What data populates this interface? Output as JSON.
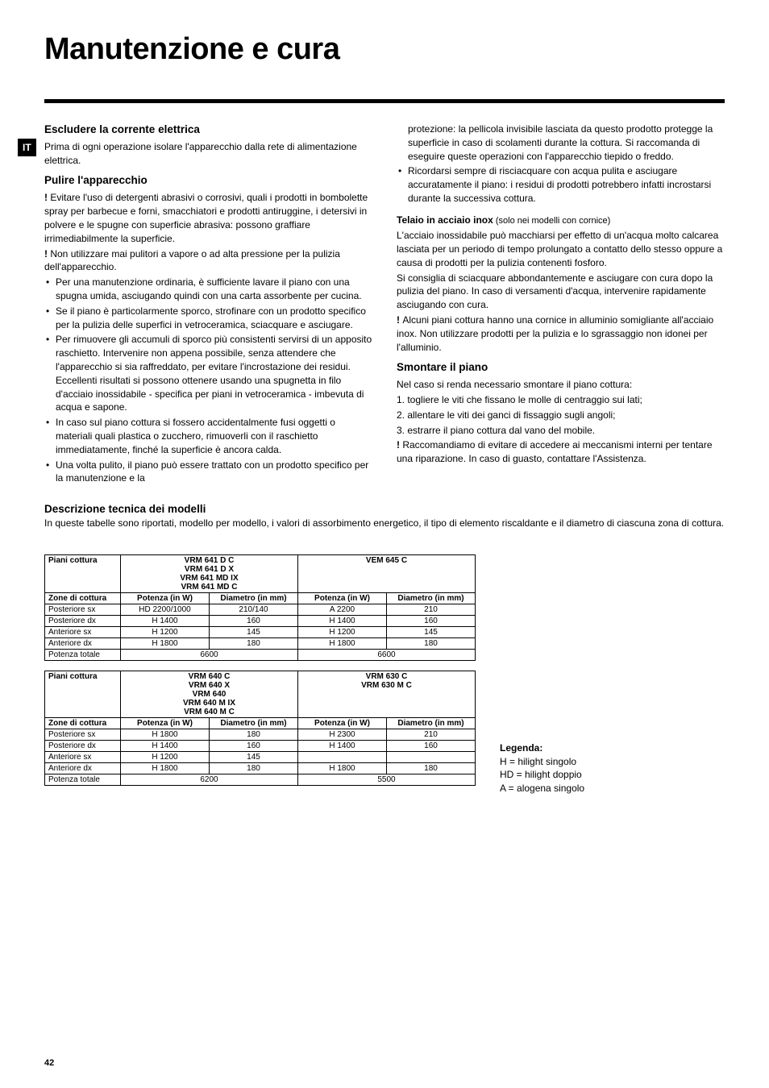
{
  "title": "Manutenzione e cura",
  "lang_badge": "IT",
  "page_number": "42",
  "left_col": {
    "h1": "Escludere la corrente elettrica",
    "p1": "Prima di ogni operazione isolare l'apparecchio dalla rete di alimentazione elettrica.",
    "h2": "Pulire l'apparecchio",
    "warn1": "! ",
    "warn1_text": "Evitare l'uso di detergenti abrasivi o corrosivi, quali i prodotti in bombolette spray per barbecue e forni, smacchiatori e prodotti antiruggine, i detersivi in polvere e le spugne con superficie abrasiva: possono graffiare irrimediabilmente la superficie.",
    "warn2": "! ",
    "warn2_text": "Non utilizzare mai pulitori a vapore o ad alta pressione per la pulizia dell'apparecchio.",
    "bullets": [
      "Per una manutenzione ordinaria, è sufficiente lavare il piano con una spugna umida, asciugando quindi con una carta assorbente per cucina.",
      "Se il piano è particolarmente sporco, strofinare con un prodotto specifico per la pulizia delle superfici in vetroceramica, sciacquare e asciugare.",
      "Per rimuovere gli accumuli di sporco più consistenti servirsi di un apposito raschietto. Intervenire non appena possibile, senza attendere che l'apparecchio si sia raffreddato, per evitare l'incrostazione dei residui. Eccellenti risultati si possono ottenere usando una spugnetta in filo d'acciaio inossidabile - specifica per piani in vetroceramica - imbevuta di acqua e sapone.",
      "In caso sul piano cottura si fossero accidentalmente fusi oggetti o materiali quali plastica o zucchero, rimuoverli con il raschietto immediatamente, finché la superficie è ancora calda.",
      "Una volta pulito, il piano può essere trattato con un prodotto specifico per la manutenzione e la"
    ]
  },
  "right_col": {
    "cont": "protezione: la pellicola invisibile lasciata da questo prodotto protegge la superficie in caso di scolamenti durante la cottura. Si raccomanda di eseguire queste operazioni con l'apparecchio tiepido o freddo.",
    "bullet": "Ricordarsi sempre di risciacquare con acqua pulita e asciugare accuratamente il piano: i residui di prodotti potrebbero infatti incrostarsi durante la successiva cottura.",
    "telaio_title": "Telaio in acciaio inox",
    "telaio_note": " (solo nei modelli con cornice)",
    "telaio_p1": "L'acciaio inossidabile può macchiarsi per effetto di un'acqua molto calcarea lasciata per un periodo di tempo prolungato a contatto dello stesso oppure a causa di prodotti per la pulizia contenenti fosforo.",
    "telaio_p2": "Si consiglia di sciacquare abbondantemente e asciugare con cura dopo la pulizia del piano. In caso di versamenti d'acqua, intervenire rapidamente asciugando con cura.",
    "telaio_warn": "! ",
    "telaio_warn_text": "Alcuni piani cottura hanno una cornice in alluminio somigliante all'acciaio inox. Non utilizzare prodotti per la pulizia e lo sgrassaggio non idonei per l'alluminio.",
    "h_smontare": "Smontare il piano",
    "sm_p1": "Nel caso si renda necessario smontare il piano cottura:",
    "sm_l1": "1. togliere le viti che fissano le molle di centraggio sui lati;",
    "sm_l2": "2. allentare le viti dei ganci di fissaggio sugli angoli;",
    "sm_l3": "3. estrarre il piano cottura dal vano del mobile.",
    "sm_warn": "! ",
    "sm_warn_text": "Raccomandiamo di evitare di accedere ai meccanismi interni per tentare una riparazione. In caso di guasto, contattare l'Assistenza."
  },
  "desc": {
    "header": "Descrizione tecnica  dei modelli",
    "intro": "In queste tabelle sono riportati, modello per modello, i valori di assorbimento energetico, il tipo di elemento riscaldante e il diametro di ciascuna zona di cottura."
  },
  "table_headers": {
    "piani": "Piani cottura",
    "zone": "Zone di cottura",
    "potenza": "Potenza (in W)",
    "diametro": "Diametro (in mm)"
  },
  "table1": {
    "model_a": "VRM 641 D C\nVRM 641 D X\nVRM 641 MD IX\nVRM 641 MD C",
    "model_b": "VEM 645 C",
    "rows": [
      {
        "zone": "Posteriore sx",
        "pa": "HD 2200/1000",
        "da": "210/140",
        "pb": "A 2200",
        "db": "210"
      },
      {
        "zone": "Posteriore dx",
        "pa": "H 1400",
        "da": "160",
        "pb": "H 1400",
        "db": "160"
      },
      {
        "zone": "Anteriore sx",
        "pa": "H 1200",
        "da": "145",
        "pb": "H 1200",
        "db": "145"
      },
      {
        "zone": "Anteriore dx",
        "pa": "H 1800",
        "da": "180",
        "pb": "H 1800",
        "db": "180"
      }
    ],
    "total_label": "Potenza totale",
    "total_a": "6600",
    "total_b": "6600"
  },
  "table2": {
    "model_a": "VRM 640 C\nVRM 640 X\nVRM 640\nVRM 640 M IX\nVRM 640 M C",
    "model_b": "VRM 630 C\nVRM 630 M C",
    "rows": [
      {
        "zone": "Posteriore sx",
        "pa": "H 1800",
        "da": "180",
        "pb": "H 2300",
        "db": "210"
      },
      {
        "zone": "Posteriore dx",
        "pa": "H 1400",
        "da": "160",
        "pb": "H 1400",
        "db": "160"
      },
      {
        "zone": "Anteriore sx",
        "pa": "H 1200",
        "da": "145",
        "pb": "",
        "db": ""
      },
      {
        "zone": "Anteriore dx",
        "pa": "H 1800",
        "da": "180",
        "pb": "H 1800",
        "db": "180"
      }
    ],
    "total_label": "Potenza totale",
    "total_a": "6200",
    "total_b": "5500"
  },
  "legend": {
    "title": "Legenda:",
    "l1": "H = hilight singolo",
    "l2": "HD = hilight doppio",
    "l3": "A = alogena singolo"
  },
  "col_widths": {
    "c1": 94,
    "c2": 110,
    "c3": 110,
    "c4": 110,
    "c5": 110
  }
}
